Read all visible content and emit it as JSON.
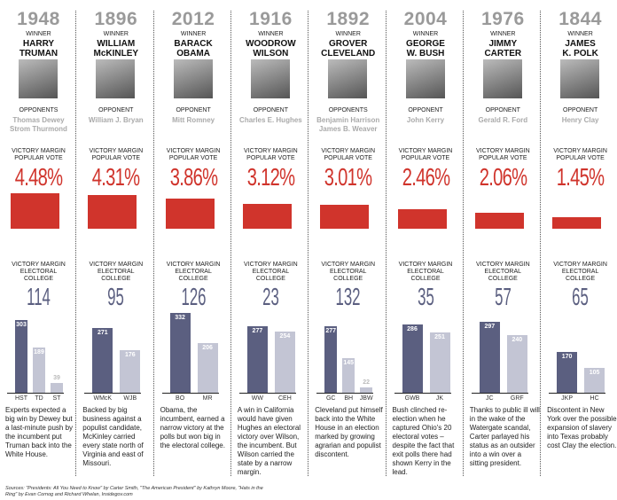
{
  "labels": {
    "winner": "WINNER",
    "victory_margin": "VICTORY MARGIN",
    "popular_vote": "POPULAR VOTE",
    "electoral": "ELECTORAL",
    "college": "COLLEGE"
  },
  "colors": {
    "red": "#d0342c",
    "winner_bar": "#5b5f80",
    "loser_bar": "#c3c5d4"
  },
  "sources": "Sources: \"Presidents: All You Need to Know\" by Carter Smith, \"The American President\" by Kathryn Moore, \"Hats in the Ring\" by Evan Cornog and Richard Whelan, Insidegov.com",
  "chart_data": {
    "type": "bar",
    "title": "Victory margins",
    "elections": [
      {
        "year": "1948",
        "winner": [
          "HARRY",
          "TRUMAN"
        ],
        "opp_label": "OPPONENTS",
        "opponents": [
          "Thomas Dewey",
          "Strom Thurmond"
        ],
        "popular_margin": 4.48,
        "popular_label": "4.48%",
        "ec_margin": "114",
        "ec": [
          {
            "abbr": "HST",
            "votes": 303
          },
          {
            "abbr": "TD",
            "votes": 189
          },
          {
            "abbr": "ST",
            "votes": 39
          }
        ],
        "note": "Experts expected a big win by Dewey but a last-minute push by the incumbent put Truman back into the White House."
      },
      {
        "year": "1896",
        "winner": [
          "WILLIAM",
          "McKINLEY"
        ],
        "opp_label": "OPPONENT",
        "opponents": [
          "William J. Bryan"
        ],
        "popular_margin": 4.31,
        "popular_label": "4.31%",
        "ec_margin": "95",
        "ec": [
          {
            "abbr": "WMcK",
            "votes": 271
          },
          {
            "abbr": "WJB",
            "votes": 176
          }
        ],
        "note": "Backed by big business against a populist candidate, McKinley carried every state north of Virginia and east of Missouri."
      },
      {
        "year": "2012",
        "winner": [
          "BARACK",
          "OBAMA"
        ],
        "opp_label": "OPPONENT",
        "opponents": [
          "Mitt Romney"
        ],
        "popular_margin": 3.86,
        "popular_label": "3.86%",
        "ec_margin": "126",
        "ec": [
          {
            "abbr": "BO",
            "votes": 332
          },
          {
            "abbr": "MR",
            "votes": 206
          }
        ],
        "note": "Obama, the incumbent, earned a narrow victory at the polls but won big in the electoral college."
      },
      {
        "year": "1916",
        "winner": [
          "WOODROW",
          "WILSON"
        ],
        "opp_label": "OPPONENT",
        "opponents": [
          "Charles E. Hughes"
        ],
        "popular_margin": 3.12,
        "popular_label": "3.12%",
        "ec_margin": "23",
        "ec": [
          {
            "abbr": "WW",
            "votes": 277
          },
          {
            "abbr": "CEH",
            "votes": 254
          }
        ],
        "note": "A win in California would have given Hughes an electoral victory over Wilson, the incumbent. But Wilson carried the state by a narrow margin."
      },
      {
        "year": "1892",
        "winner": [
          "GROVER",
          "CLEVELAND"
        ],
        "opp_label": "OPPONENTS",
        "opponents": [
          "Benjamin Harrison",
          "James B. Weaver"
        ],
        "popular_margin": 3.01,
        "popular_label": "3.01%",
        "ec_margin": "132",
        "ec": [
          {
            "abbr": "GC",
            "votes": 277
          },
          {
            "abbr": "BH",
            "votes": 145
          },
          {
            "abbr": "JBW",
            "votes": 22
          }
        ],
        "note": "Cleveland put himself back into the White House in an election marked by growing agrarian and populist discontent."
      },
      {
        "year": "2004",
        "winner": [
          "GEORGE",
          "W. BUSH"
        ],
        "opp_label": "OPPONENT",
        "opponents": [
          "John Kerry"
        ],
        "popular_margin": 2.46,
        "popular_label": "2.46%",
        "ec_margin": "35",
        "ec": [
          {
            "abbr": "GWB",
            "votes": 286
          },
          {
            "abbr": "JK",
            "votes": 251
          }
        ],
        "note": "Bush clinched re-election when he captured Ohio's 20 electoral votes – despite the fact that exit polls there had shown Kerry in the lead."
      },
      {
        "year": "1976",
        "winner": [
          "JIMMY",
          "CARTER"
        ],
        "opp_label": "OPPONENT",
        "opponents": [
          "Gerald R. Ford"
        ],
        "popular_margin": 2.06,
        "popular_label": "2.06%",
        "ec_margin": "57",
        "ec": [
          {
            "abbr": "JC",
            "votes": 297
          },
          {
            "abbr": "GRF",
            "votes": 240
          }
        ],
        "note": "Thanks to public ill will in the wake of the Watergate scandal, Carter parlayed his status as an outsider into a win over a sitting president."
      },
      {
        "year": "1844",
        "winner": [
          "JAMES",
          "K. POLK"
        ],
        "opp_label": "OPPONENT",
        "opponents": [
          "Henry Clay"
        ],
        "popular_margin": 1.45,
        "popular_label": "1.45%",
        "ec_margin": "65",
        "ec": [
          {
            "abbr": "JKP",
            "votes": 170
          },
          {
            "abbr": "HC",
            "votes": 105
          }
        ],
        "note": "Discontent in New York over the possible expansion of slavery into Texas probably cost Clay the election."
      }
    ]
  }
}
